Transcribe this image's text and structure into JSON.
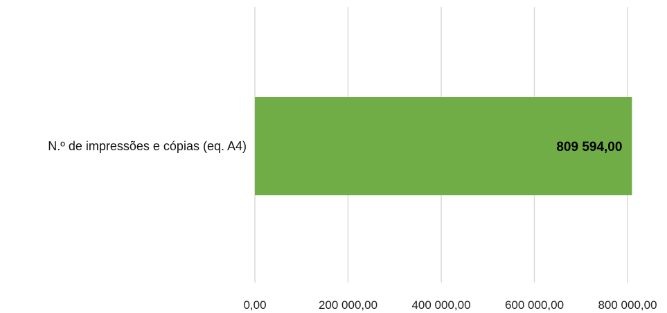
{
  "chart_data": {
    "type": "bar",
    "orientation": "horizontal",
    "categories": [
      "N.º de impressões e cópias (eq. A4)"
    ],
    "values": [
      809594
    ],
    "data_labels": [
      "809 594,00"
    ],
    "xlim": [
      0,
      800000
    ],
    "x_ticks": [
      0,
      200000,
      400000,
      600000,
      800000
    ],
    "x_tick_labels": [
      "0,00",
      "200 000,00",
      "400 000,00",
      "600 000,00",
      "800 000,00"
    ],
    "grid": true,
    "legend": "none",
    "colors": {
      "bar": "#70AD47",
      "grid": "#D9D9D9"
    }
  }
}
